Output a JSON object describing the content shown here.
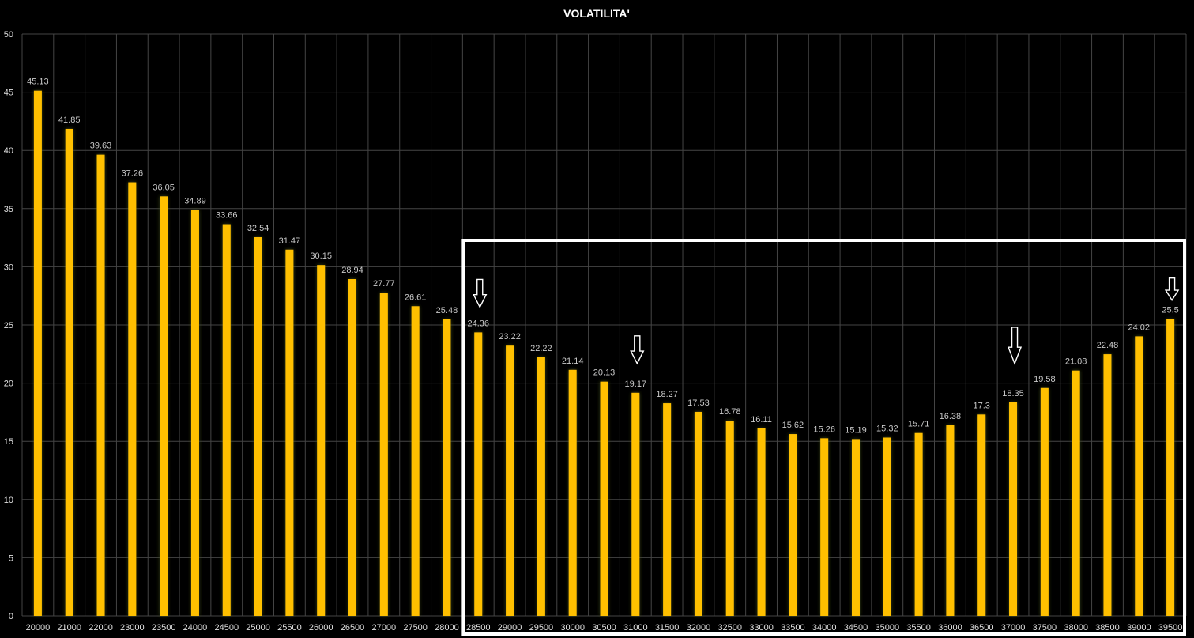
{
  "chart_data": {
    "type": "bar",
    "title": "VOLATILITA'",
    "xlabel": "",
    "ylabel": "",
    "ylim": [
      0,
      50
    ],
    "yticks": [
      0,
      5,
      10,
      15,
      20,
      25,
      30,
      35,
      40,
      45,
      50
    ],
    "grid": true,
    "legend": "none",
    "data_labels": true,
    "categories": [
      "20000",
      "21000",
      "22000",
      "23000",
      "23500",
      "24000",
      "24500",
      "25000",
      "25500",
      "26000",
      "26500",
      "27000",
      "27500",
      "28000",
      "28500",
      "29000",
      "29500",
      "30000",
      "30500",
      "31000",
      "31500",
      "32000",
      "32500",
      "33000",
      "33500",
      "34000",
      "34500",
      "35000",
      "35500",
      "36000",
      "36500",
      "37000",
      "37500",
      "38000",
      "38500",
      "39000",
      "39500"
    ],
    "values": [
      45.13,
      41.85,
      39.63,
      37.26,
      36.05,
      34.89,
      33.66,
      32.54,
      31.47,
      30.15,
      28.94,
      27.77,
      26.61,
      25.48,
      24.36,
      23.22,
      22.22,
      21.14,
      20.13,
      19.17,
      18.27,
      17.53,
      16.78,
      16.11,
      15.62,
      15.26,
      15.19,
      15.32,
      15.71,
      16.38,
      17.3,
      18.35,
      19.58,
      21.08,
      22.48,
      24.02,
      25.5
    ]
  },
  "annotations": {
    "highlighted_range": [
      "28500",
      "39500"
    ],
    "arrow_markers": [
      "28500",
      "31000",
      "37000",
      "39500"
    ],
    "arrow_icon": "down-arrow-outline"
  },
  "colors": {
    "background": "#000000",
    "bar": "#FFC000",
    "bar_glow": "#3d4a1a",
    "grid": "#454545",
    "title": "#ffffff",
    "tick_label": "#e0e0e0",
    "data_label": "#c8c8c8",
    "highlight_box": "#ffffff",
    "arrow_stroke": "#ffffff"
  }
}
